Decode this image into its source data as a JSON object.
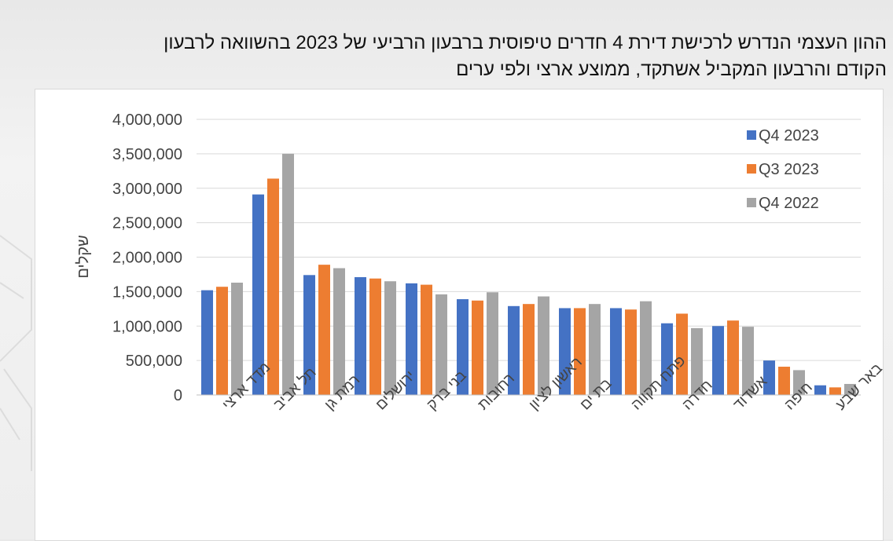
{
  "page": {
    "title_line1": "ההון העצמי הנדרש לרכישת דירת 4 חדרים טיפוסית ברבעון הרביעי של 2023 בהשוואה לרבעון",
    "title_line2": "הקודם והרבעון המקביל אשתקד, ממוצע ארצי ולפי ערים"
  },
  "chart_data": {
    "type": "bar",
    "ylabel": "שקלים",
    "ylim": [
      0,
      4000000
    ],
    "yticks": [
      0,
      500000,
      1000000,
      1500000,
      2000000,
      2500000,
      3000000,
      3500000,
      4000000
    ],
    "ytick_labels": [
      "0",
      "500,000",
      "1,000,000",
      "1,500,000",
      "2,000,000",
      "2,500,000",
      "3,000,000",
      "3,500,000",
      "4,000,000"
    ],
    "grid": true,
    "legend_position": "top-right",
    "categories": [
      "מדד ארצי",
      "תל אביב",
      "רמת גן",
      "ירושלים",
      "בני ברק",
      "רחובות",
      "ראשון לציון",
      "בת ים",
      "פתח תקווה",
      "חדרה",
      "אשדוד",
      "חיפה",
      "באר שבע"
    ],
    "series": [
      {
        "name": "Q4 2023",
        "color": "#4472c4",
        "values": [
          1520000,
          2910000,
          1740000,
          1710000,
          1620000,
          1390000,
          1290000,
          1260000,
          1260000,
          1040000,
          1000000,
          500000,
          140000
        ]
      },
      {
        "name": "Q3 2023",
        "color": "#ed7d31",
        "values": [
          1570000,
          3140000,
          1890000,
          1690000,
          1600000,
          1370000,
          1320000,
          1260000,
          1240000,
          1180000,
          1080000,
          410000,
          110000
        ]
      },
      {
        "name": "Q4 2022",
        "color": "#a5a5a5",
        "values": [
          1630000,
          3500000,
          1840000,
          1650000,
          1460000,
          1490000,
          1430000,
          1320000,
          1360000,
          970000,
          990000,
          360000,
          160000
        ]
      }
    ]
  }
}
